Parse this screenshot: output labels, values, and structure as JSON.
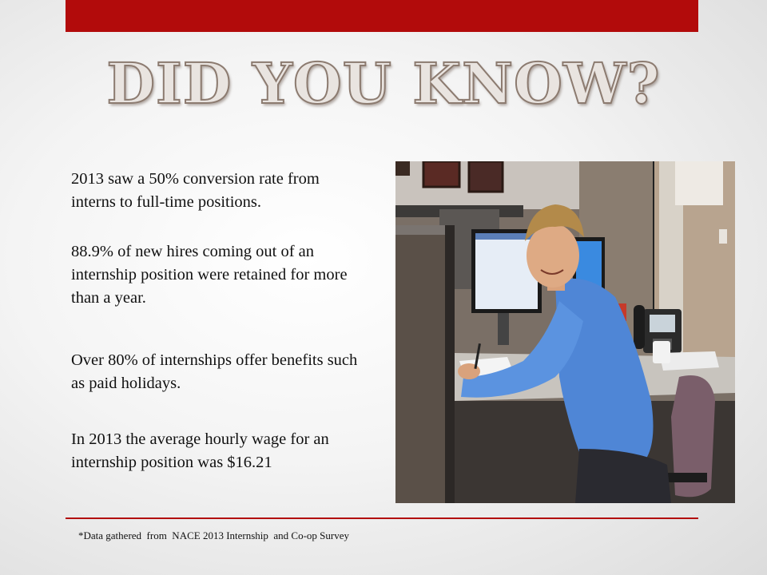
{
  "slide": {
    "title": "DID YOU KNOW?",
    "facts": [
      "2013 saw a 50% conversion rate from interns to full-time positions.",
      "88.9% of new hires coming out of an internship position were retained for more than a year.",
      "Over 80% of internships offer benefits such as paid holidays.",
      "In 2013  the average hourly wage for an internship position was $16.21"
    ],
    "footnote": "*Data gathered  from  NACE 2013 Internship  and Co-op Survey",
    "colors": {
      "accent_bar": "#b20b0b",
      "title_fill": "#e9e4e0",
      "title_outline": "#8c7b70"
    },
    "photo": {
      "subject": "intern-at-office-desk-photo"
    }
  }
}
